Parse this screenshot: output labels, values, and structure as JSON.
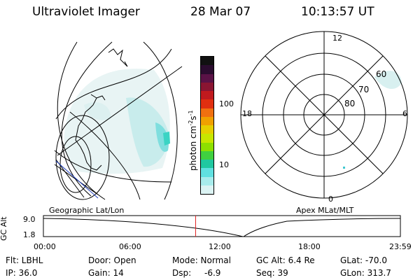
{
  "header": {
    "title": "Ultraviolet Imager",
    "date": "28 Mar 07",
    "time": "10:13:57 UT"
  },
  "colorbar": {
    "label_main": "photon cm",
    "label_sup1": "-2",
    "label_mid": "s",
    "label_sup2": "-1",
    "tick_100": "100",
    "tick_10": "10",
    "colors": [
      "#111111",
      "#2b0c2f",
      "#5a1246",
      "#8a1532",
      "#c01a1e",
      "#e02f10",
      "#f07010",
      "#f0a000",
      "#e6cf00",
      "#c8e600",
      "#8ee000",
      "#40d040",
      "#20c8a0",
      "#60e0e0",
      "#a8ecec",
      "#dcf4f4"
    ]
  },
  "polar": {
    "mlt_12": "12",
    "mlt_18": "18",
    "mlt_6": "6",
    "mlt_0": "0",
    "lat_60": "60",
    "lat_70": "70",
    "lat_80": "80"
  },
  "labels": {
    "geographic": "Geographic Lat/Lon",
    "apex": "Apex MLat/MLT"
  },
  "timeline": {
    "axis_label": "GC Alt",
    "y_top": "9.0",
    "y_bottom": "1.8",
    "ticks": [
      "00:00",
      "06:00",
      "12:00",
      "18:00",
      "23:59"
    ],
    "current_fraction": 0.4264,
    "marker_color": "#e02020"
  },
  "info": {
    "filter_label": "Flt: LBHL",
    "ip_label": "IP: 36.0",
    "door_label": "Door: Open",
    "gain_label": "Gain: 14",
    "mode_label": "Mode: Normal",
    "dsp_label": "Dsp:",
    "dsp_value": "-6.9",
    "gcalt_label": "GC Alt: 6.4 Re",
    "seq_label": "Seq: 39",
    "glat_label": "GLat: -70.0",
    "glon_label": "GLon: 313.7"
  }
}
